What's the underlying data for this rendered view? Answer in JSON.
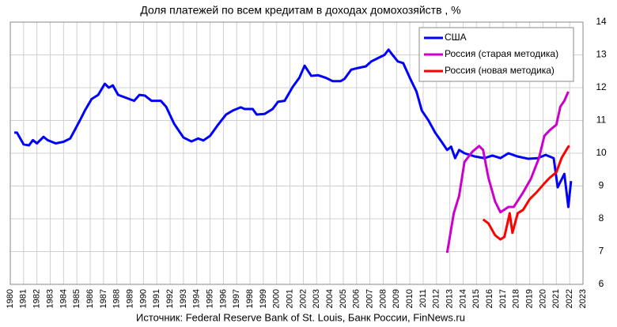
{
  "chart_data": {
    "type": "line",
    "title": "Доля платежей по всем кредитам в доходах домохозяйств , %",
    "source": "Источник: Federal Reserve Bank of St. Louis, Банк России, FinNews.ru",
    "xlim": [
      1980,
      2023
    ],
    "xticks": [
      1980,
      1981,
      1982,
      1983,
      1984,
      1985,
      1986,
      1987,
      1988,
      1989,
      1990,
      1991,
      1992,
      1993,
      1994,
      1995,
      1996,
      1997,
      1998,
      1999,
      2000,
      2001,
      2002,
      2003,
      2004,
      2005,
      2006,
      2007,
      2008,
      2009,
      2010,
      2011,
      2012,
      2013,
      2014,
      2015,
      2016,
      2017,
      2018,
      2019,
      2020,
      2021,
      2022,
      2023
    ],
    "ylim": [
      6,
      14
    ],
    "yticks": [
      6,
      7,
      8,
      9,
      10,
      11,
      12,
      13,
      14
    ],
    "grid": true,
    "legend": "upper right",
    "series": [
      {
        "name": "США",
        "color": "#0000ff",
        "x": [
          1980.3,
          1980.5,
          1981.0,
          1981.4,
          1981.7,
          1982.0,
          1982.5,
          1982.8,
          1983.4,
          1984.0,
          1984.5,
          1984.9,
          1985.3,
          1985.6,
          1986.1,
          1986.6,
          1987.1,
          1987.4,
          1987.7,
          1988.1,
          1988.7,
          1989.3,
          1989.7,
          1990.1,
          1990.6,
          1991.3,
          1991.7,
          1992.3,
          1993.0,
          1993.6,
          1994.1,
          1994.5,
          1995.0,
          1995.6,
          1996.2,
          1996.7,
          1997.3,
          1997.6,
          1998.2,
          1998.5,
          1999.1,
          1999.7,
          2000.1,
          2000.6,
          2001.2,
          2001.7,
          2002.1,
          2002.6,
          2003.1,
          2003.7,
          2004.2,
          2004.8,
          2005.1,
          2005.6,
          2006.1,
          2006.7,
          2007.1,
          2007.6,
          2008.1,
          2008.4,
          2008.7,
          2009.1,
          2009.5,
          2010.0,
          2010.5,
          2010.9,
          2011.4,
          2011.9,
          2012.4,
          2012.8,
          2013.1,
          2013.4,
          2013.7,
          2014.1,
          2014.9,
          2015.6,
          2016.2,
          2016.8,
          2017.4,
          2018.1,
          2018.9,
          2019.6,
          2020.2,
          2020.8,
          2021.1,
          2021.6,
          2021.9,
          2022.1
        ],
        "values": [
          10.63,
          10.63,
          10.27,
          10.24,
          10.4,
          10.3,
          10.5,
          10.4,
          10.3,
          10.35,
          10.45,
          10.75,
          11.06,
          11.3,
          11.65,
          11.78,
          12.12,
          12.0,
          12.07,
          11.78,
          11.69,
          11.6,
          11.78,
          11.76,
          11.6,
          11.6,
          11.42,
          10.9,
          10.48,
          10.36,
          10.45,
          10.39,
          10.53,
          10.87,
          11.18,
          11.3,
          11.4,
          11.35,
          11.35,
          11.18,
          11.2,
          11.35,
          11.57,
          11.6,
          12.02,
          12.3,
          12.67,
          12.36,
          12.38,
          12.3,
          12.2,
          12.2,
          12.27,
          12.55,
          12.6,
          12.65,
          12.8,
          12.9,
          13.0,
          13.16,
          13.0,
          12.8,
          12.75,
          12.3,
          11.88,
          11.3,
          11.0,
          10.63,
          10.34,
          10.1,
          10.2,
          9.85,
          10.1,
          10.0,
          9.9,
          9.85,
          9.93,
          9.85,
          10.0,
          9.9,
          9.83,
          9.85,
          9.95,
          9.85,
          8.96,
          9.37,
          8.36,
          9.15
        ]
      },
      {
        "name": "Россия (старая методика)",
        "color": "#cc00cc",
        "x": [
          2012.8,
          2013.3,
          2013.7,
          2014.1,
          2014.7,
          2015.2,
          2015.5,
          2015.9,
          2016.4,
          2016.8,
          2017.4,
          2017.8,
          2018.5,
          2019.1,
          2019.7,
          2020.1,
          2020.5,
          2021.0,
          2021.3,
          2021.6,
          2021.9
        ],
        "values": [
          6.96,
          8.17,
          8.7,
          9.73,
          10.05,
          10.22,
          10.1,
          9.25,
          8.53,
          8.2,
          8.36,
          8.36,
          8.8,
          9.23,
          9.86,
          10.53,
          10.7,
          10.87,
          11.42,
          11.6,
          11.88
        ]
      },
      {
        "name": "Россия (новая методика)",
        "color": "#ff0000",
        "x": [
          2015.5,
          2015.9,
          2016.4,
          2016.8,
          2017.1,
          2017.5,
          2017.7,
          2018.1,
          2018.5,
          2019.0,
          2019.5,
          2020.1,
          2020.5,
          2021.0,
          2021.4,
          2021.9,
          2022.0
        ],
        "values": [
          7.98,
          7.86,
          7.5,
          7.37,
          7.45,
          8.17,
          7.57,
          8.17,
          8.27,
          8.6,
          8.8,
          9.08,
          9.25,
          9.42,
          9.86,
          10.2,
          10.22
        ]
      }
    ]
  }
}
